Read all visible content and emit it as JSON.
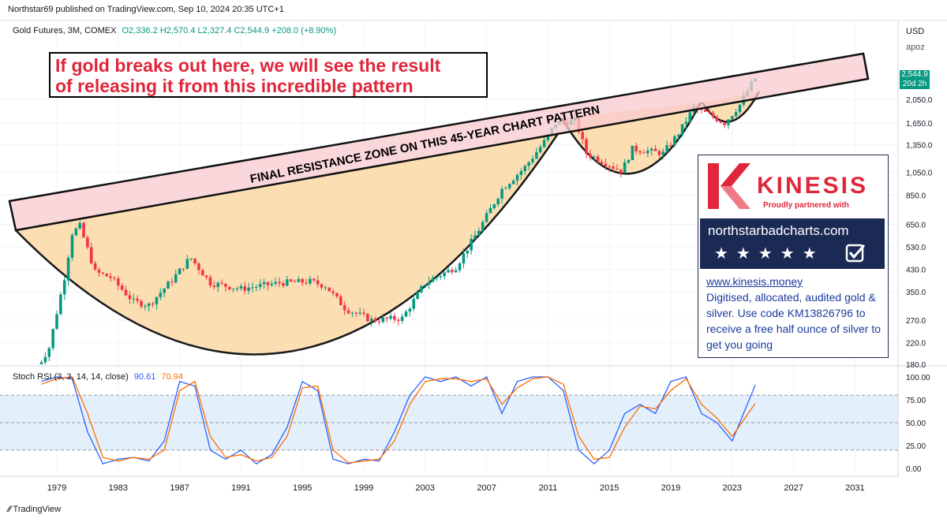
{
  "header": {
    "publisher_line": "Northstar69 published on TradingView.com, Sep 10, 2024 20:35 UTC+1",
    "symbol_line": "Gold Futures, 3M, COMEX",
    "ohlc": {
      "o": "O2,336.2",
      "h": "H2,570.4",
      "l": "L2,327.4",
      "c": "C2,544.9",
      "change": "+208.0 (+8.90%)"
    }
  },
  "annotation": {
    "line1": "If gold breaks out here, we will see the result",
    "line2": "of releasing it from this incredible pattern"
  },
  "resistance_label": "FINAL RESISTANCE ZONE ON THIS 45-YEAR CHART PATTERN",
  "price_axis": {
    "currency": "USD",
    "unit": "apoz",
    "ticks": [
      "2,050.0",
      "1,650.0",
      "1,350.0",
      "1,050.0",
      "850.0",
      "650.0",
      "530.0",
      "430.0",
      "350.0",
      "270.0",
      "220.0",
      "180.0"
    ],
    "last_price": "2,544.9",
    "countdown": "20d 2h"
  },
  "time_axis": {
    "ticks": [
      "1979",
      "1983",
      "1987",
      "1991",
      "1995",
      "1999",
      "2003",
      "2007",
      "2011",
      "2015",
      "2019",
      "2023",
      "2027",
      "2031"
    ]
  },
  "stoch": {
    "label": "Stoch RSI (3, 3, 14, 14, close)",
    "k_value": "90.61",
    "d_value": "70.94",
    "ticks": [
      "100.00",
      "75.00",
      "50.00",
      "25.00",
      "0.00"
    ]
  },
  "ad": {
    "brand": "KINESIS",
    "subtitle": "Proudly partnered with",
    "banner": "northstarbadcharts.com",
    "stars": "★★★★★",
    "link": "www.kinesis.money",
    "description": "Digitised, allocated, audited gold & silver. Use code KM13826796 to receive a free half ounce of silver to get you going"
  },
  "footer": {
    "logo": "TradingView"
  },
  "colors": {
    "up": "#089981",
    "down": "#f23645",
    "stoch_k": "#2962ff",
    "stoch_d": "#ff6d00",
    "zone": "#f8c9cf",
    "cup": "#fbd8a6"
  },
  "chart_data": [
    {
      "type": "candlestick",
      "title": "Gold Futures, 3M, COMEX",
      "y_scale": "log",
      "ylim": [
        180,
        2700
      ],
      "xlim": [
        1976.5,
        2033
      ],
      "approx_quarterly_close_path": [
        [
          1977.5,
          165
        ],
        [
          1978.5,
          210
        ],
        [
          1979.5,
          400
        ],
        [
          1980.0,
          600
        ],
        [
          1980.5,
          640
        ],
        [
          1981.5,
          420
        ],
        [
          1982.5,
          400
        ],
        [
          1984.0,
          320
        ],
        [
          1985.0,
          310
        ],
        [
          1986.5,
          390
        ],
        [
          1987.7,
          480
        ],
        [
          1989.0,
          380
        ],
        [
          1991.0,
          360
        ],
        [
          1993.5,
          380
        ],
        [
          1995.5,
          385
        ],
        [
          1996.5,
          370
        ],
        [
          1997.8,
          300
        ],
        [
          1999.5,
          270
        ],
        [
          2001.5,
          275
        ],
        [
          2003.0,
          380
        ],
        [
          2005.0,
          440
        ],
        [
          2006.5,
          620
        ],
        [
          2008.0,
          900
        ],
        [
          2009.5,
          1100
        ],
        [
          2010.8,
          1400
        ],
        [
          2011.5,
          1650
        ],
        [
          2012.8,
          1680
        ],
        [
          2013.5,
          1250
        ],
        [
          2015.8,
          1060
        ],
        [
          2016.5,
          1300
        ],
        [
          2018.5,
          1250
        ],
        [
          2019.5,
          1500
        ],
        [
          2020.5,
          1900
        ],
        [
          2021.5,
          1780
        ],
        [
          2022.5,
          1650
        ],
        [
          2023.5,
          1950
        ],
        [
          2024.2,
          2330
        ],
        [
          2024.6,
          2544.9
        ]
      ],
      "last": {
        "open": 2336.2,
        "high": 2570.4,
        "low": 2327.4,
        "close": 2544.9
      }
    },
    {
      "type": "line",
      "title": "Stoch RSI (3, 3, 14, 14, close)",
      "ylim": [
        0,
        100
      ],
      "bands": [
        20,
        80
      ],
      "series": [
        {
          "name": "K",
          "x": [
            1978,
            1979,
            1980,
            1981,
            1982,
            1983,
            1984,
            1985,
            1986,
            1987,
            1988,
            1989,
            1990,
            1991,
            1992,
            1993,
            1994,
            1995,
            1996,
            1997,
            1998,
            1999,
            2000,
            2001,
            2002,
            2003,
            2004,
            2005,
            2006,
            2007,
            2008,
            2009,
            2010,
            2011,
            2012,
            2013,
            2014,
            2015,
            2016,
            2017,
            2018,
            2019,
            2020,
            2021,
            2022,
            2023,
            2024.5
          ],
          "values": [
            95,
            100,
            98,
            40,
            5,
            10,
            12,
            8,
            30,
            95,
            90,
            20,
            10,
            20,
            5,
            15,
            45,
            95,
            85,
            10,
            5,
            10,
            8,
            40,
            80,
            100,
            95,
            100,
            90,
            100,
            60,
            95,
            100,
            100,
            85,
            20,
            5,
            20,
            60,
            70,
            60,
            95,
            100,
            60,
            50,
            30,
            91
          ]
        },
        {
          "name": "D",
          "x": [
            1978,
            1979,
            1980,
            1981,
            1982,
            1983,
            1984,
            1985,
            1986,
            1987,
            1988,
            1989,
            1990,
            1991,
            1992,
            1993,
            1994,
            1995,
            1996,
            1997,
            1998,
            1999,
            2000,
            2001,
            2002,
            2003,
            2004,
            2005,
            2006,
            2007,
            2008,
            2009,
            2010,
            2011,
            2012,
            2013,
            2014,
            2015,
            2016,
            2017,
            2018,
            2019,
            2020,
            2021,
            2022,
            2023,
            2024.5
          ],
          "values": [
            92,
            98,
            100,
            60,
            12,
            8,
            12,
            10,
            20,
            85,
            95,
            35,
            12,
            15,
            8,
            12,
            35,
            88,
            90,
            20,
            6,
            8,
            10,
            30,
            70,
            95,
            98,
            98,
            95,
            98,
            70,
            88,
            98,
            100,
            92,
            35,
            10,
            12,
            45,
            68,
            65,
            85,
            98,
            70,
            55,
            35,
            71
          ]
        }
      ]
    }
  ]
}
